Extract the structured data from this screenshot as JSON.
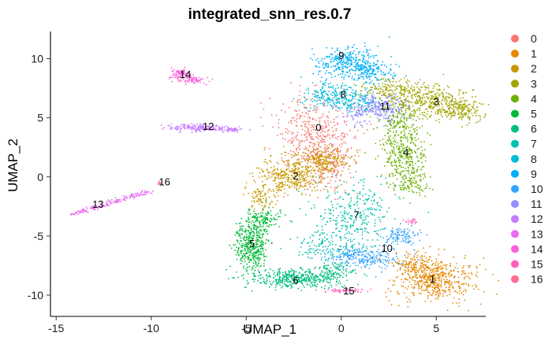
{
  "chart_data": {
    "type": "scatter",
    "title": "integrated_snn_res.0.7",
    "xlabel": "UMAP_1",
    "ylabel": "UMAP_2",
    "xlim": [
      -15.3,
      7.6
    ],
    "ylim": [
      -11.8,
      12.3
    ],
    "x_ticks": [
      -15,
      -10,
      -5,
      0,
      5
    ],
    "y_ticks": [
      -10,
      -5,
      0,
      5,
      10
    ],
    "grid": false,
    "legend_position": "right",
    "clusters": [
      {
        "name": "0",
        "color": "#F8766D",
        "label_pos": [
          -1.2,
          4.1
        ],
        "blobs": [
          [
            -1.5,
            3.6,
            1.4,
            2.1,
            420
          ],
          [
            -0.6,
            1.0,
            0.8,
            1.6,
            160
          ]
        ]
      },
      {
        "name": "1",
        "color": "#E58700",
        "label_pos": [
          4.8,
          -8.7
        ],
        "blobs": [
          [
            4.9,
            -8.7,
            1.4,
            1.2,
            520
          ],
          [
            4.0,
            -7.5,
            0.9,
            0.7,
            120
          ]
        ]
      },
      {
        "name": "2",
        "color": "#C99800",
        "label_pos": [
          -2.4,
          0.0
        ],
        "blobs": [
          [
            -2.6,
            0.0,
            1.2,
            1.0,
            360
          ],
          [
            -1.0,
            1.4,
            1.0,
            0.7,
            220
          ],
          [
            -4.2,
            -1.8,
            0.5,
            0.7,
            80
          ]
        ]
      },
      {
        "name": "3",
        "color": "#A3A500",
        "label_pos": [
          5.0,
          6.3
        ],
        "blobs": [
          [
            4.6,
            6.4,
            1.5,
            0.9,
            380
          ],
          [
            6.3,
            5.6,
            0.7,
            0.6,
            180
          ],
          [
            2.8,
            7.4,
            1.2,
            0.6,
            160
          ]
        ]
      },
      {
        "name": "4",
        "color": "#6BB100",
        "label_pos": [
          3.4,
          2.0
        ],
        "blobs": [
          [
            3.3,
            2.0,
            0.8,
            1.8,
            360
          ],
          [
            3.0,
            4.8,
            0.8,
            0.8,
            120
          ],
          [
            3.7,
            -0.6,
            0.6,
            0.8,
            80
          ]
        ]
      },
      {
        "name": "5",
        "color": "#00BA38",
        "label_pos": [
          -4.7,
          -5.7
        ],
        "blobs": [
          [
            -4.7,
            -5.8,
            0.6,
            1.6,
            420
          ],
          [
            -4.0,
            -3.5,
            0.7,
            0.6,
            110
          ]
        ]
      },
      {
        "name": "6",
        "color": "#00BF7D",
        "label_pos": [
          -2.4,
          -8.8
        ],
        "blobs": [
          [
            -2.4,
            -8.6,
            1.6,
            0.5,
            420
          ],
          [
            -0.3,
            -8.0,
            0.7,
            0.5,
            90
          ]
        ]
      },
      {
        "name": "7",
        "color": "#00C0AF",
        "label_pos": [
          0.8,
          -3.3
        ],
        "blobs": [
          [
            0.6,
            -3.4,
            1.4,
            2.1,
            340
          ],
          [
            -0.9,
            -6.0,
            1.0,
            0.8,
            110
          ]
        ]
      },
      {
        "name": "8",
        "color": "#00BCD8",
        "label_pos": [
          0.1,
          6.9
        ],
        "blobs": [
          [
            -0.4,
            6.8,
            1.0,
            0.8,
            220
          ],
          [
            1.0,
            6.4,
            0.7,
            0.6,
            100
          ]
        ]
      },
      {
        "name": "9",
        "color": "#00B0F6",
        "label_pos": [
          0.0,
          10.2
        ],
        "blobs": [
          [
            0.4,
            9.6,
            1.1,
            0.9,
            340
          ],
          [
            1.6,
            8.8,
            0.8,
            0.6,
            120
          ]
        ]
      },
      {
        "name": "10",
        "color": "#35A2FF",
        "label_pos": [
          2.4,
          -6.1
        ],
        "blobs": [
          [
            1.3,
            -6.8,
            1.3,
            0.6,
            240
          ],
          [
            3.1,
            -5.0,
            0.7,
            0.5,
            100
          ]
        ]
      },
      {
        "name": "11",
        "color": "#9590FF",
        "label_pos": [
          2.3,
          5.9
        ],
        "blobs": [
          [
            2.1,
            5.8,
            0.8,
            0.8,
            220
          ],
          [
            0.9,
            5.3,
            0.5,
            0.5,
            60
          ]
        ]
      },
      {
        "name": "12",
        "color": "#C77CFF",
        "label_pos": [
          -7.0,
          4.2
        ],
        "blobs": [
          [
            -8.0,
            4.2,
            0.8,
            0.2,
            110
          ],
          [
            -6.8,
            4.1,
            0.7,
            0.2,
            70
          ],
          [
            -5.8,
            4.0,
            0.5,
            0.15,
            40
          ]
        ]
      },
      {
        "name": "13",
        "color": "#E76BF3",
        "label_pos": [
          -12.8,
          -2.4
        ],
        "line": [
          -14.2,
          -3.2,
          -10.1,
          -1.2,
          0.18,
          170
        ]
      },
      {
        "name": "14",
        "color": "#FA62DB",
        "label_pos": [
          -8.2,
          8.6
        ],
        "blobs": [
          [
            -8.5,
            8.7,
            0.35,
            0.3,
            90
          ],
          [
            -7.7,
            8.2,
            0.5,
            0.2,
            60
          ]
        ]
      },
      {
        "name": "15",
        "color": "#FF62BC",
        "label_pos": [
          0.4,
          -9.7
        ],
        "blobs": [
          [
            0.3,
            -9.6,
            0.8,
            0.12,
            50
          ],
          [
            3.7,
            -3.8,
            0.2,
            0.2,
            20
          ]
        ]
      },
      {
        "name": "16",
        "color": "#FF6C91",
        "label_pos": [
          -9.3,
          -0.5
        ],
        "blobs": [
          [
            -9.6,
            -0.5,
            0.12,
            0.15,
            10
          ]
        ]
      }
    ]
  }
}
